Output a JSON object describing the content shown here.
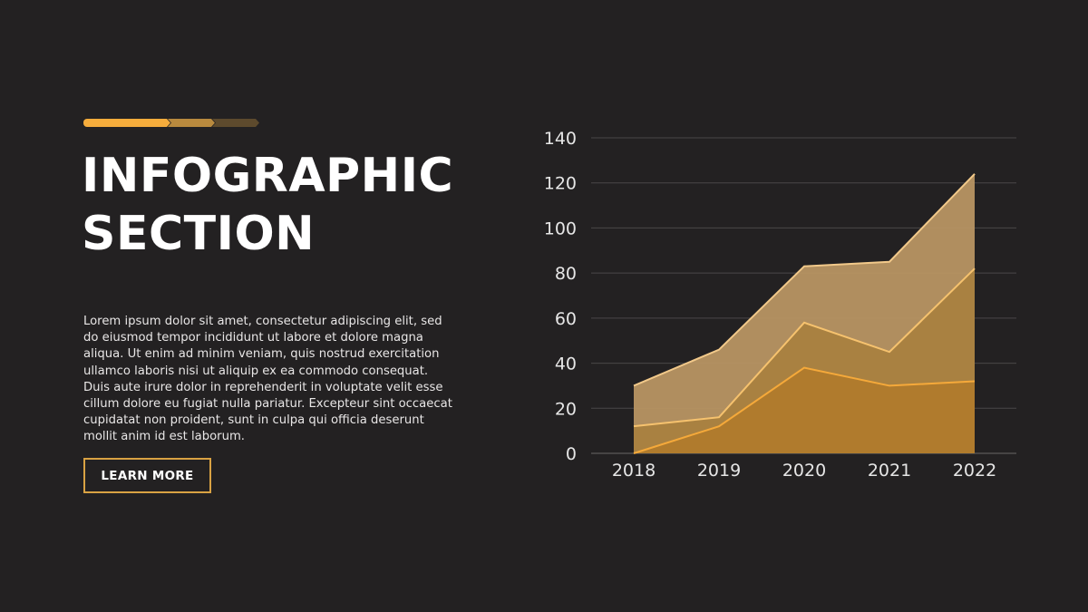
{
  "header": {
    "title_line1": "INFOGRAPHIC",
    "title_line2": "SECTION"
  },
  "body": {
    "paragraph": "Lorem ipsum dolor sit amet, consectetur adipiscing elit, sed do eiusmod tempor incididunt ut labore et dolore magna aliqua. Ut enim ad minim veniam, quis nostrud exercitation ullamco laboris nisi ut aliquip ex ea commodo consequat. Duis aute irure dolor in reprehenderit in voluptate velit esse cillum dolore eu fugiat nulla pariatur. Excepteur sint occaecat cupidatat non proident, sunt in culpa qui officia deserunt mollit anim id est laborum."
  },
  "cta": {
    "label": "LEARN MORE"
  },
  "colors": {
    "background": "#232122",
    "accent": "#f5ac3c",
    "accent_mid": "#b98a3e",
    "accent_dark": "#5d4a2d"
  },
  "chart_data": {
    "type": "area",
    "categories": [
      "2018",
      "2019",
      "2020",
      "2021",
      "2022"
    ],
    "series": [
      {
        "values": [
          30,
          46,
          83,
          85,
          124
        ],
        "color": "#b89563",
        "line": "#f2c98a"
      },
      {
        "values": [
          12,
          16,
          58,
          45,
          82
        ],
        "color": "#a9813f",
        "line": "#f6c26e"
      },
      {
        "values": [
          0,
          12,
          38,
          30,
          32
        ],
        "color": "#b07a2c",
        "line": "#f5a93a"
      }
    ],
    "ylim": [
      0,
      140
    ],
    "yticks": [
      0,
      20,
      40,
      60,
      80,
      100,
      120,
      140
    ],
    "grid": true,
    "title": "",
    "xlabel": "",
    "ylabel": ""
  }
}
